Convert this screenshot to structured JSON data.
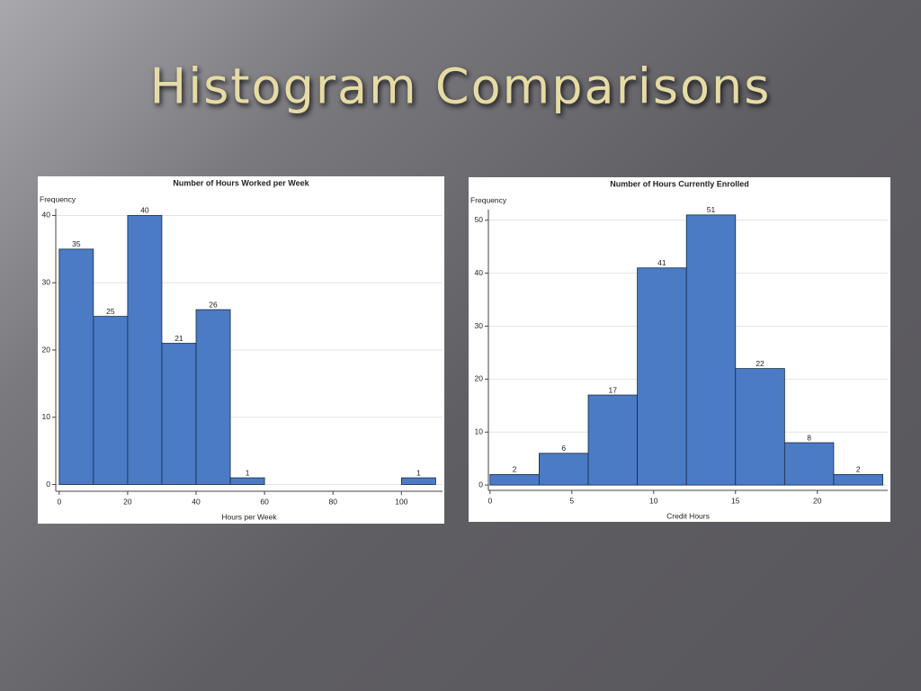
{
  "title": "Histogram Comparisons",
  "chart_data": [
    {
      "type": "histogram",
      "title": "Number of Hours Worked per Week",
      "ylabel": "Frequency",
      "xlabel": "Hours per Week",
      "bins": [
        0,
        10,
        20,
        30,
        40,
        50,
        60,
        70,
        80,
        90,
        100,
        110
      ],
      "values": [
        35,
        25,
        40,
        21,
        26,
        1,
        0,
        0,
        0,
        0,
        1
      ],
      "color": "#4a7bc4",
      "xlim": [
        -1,
        112
      ],
      "xticks": [
        0,
        20,
        40,
        60,
        80,
        100
      ],
      "ylim": [
        -1,
        41
      ],
      "yticks": [
        0,
        10,
        20,
        30,
        40
      ],
      "grid": true
    },
    {
      "type": "histogram",
      "title": "Number of Hours Currently Enrolled",
      "ylabel": "Frequency",
      "xlabel": "Credit Hours",
      "bins": [
        0,
        3,
        6,
        9,
        12,
        15,
        18,
        21,
        24
      ],
      "values": [
        2,
        6,
        17,
        41,
        51,
        22,
        8,
        2
      ],
      "color": "#4a7bc4",
      "xlim": [
        -0.1,
        24.3
      ],
      "xticks": [
        0,
        5,
        10,
        15,
        20
      ],
      "ylim": [
        -1,
        52
      ],
      "yticks": [
        0,
        10,
        20,
        30,
        40,
        50
      ],
      "grid": true
    }
  ]
}
